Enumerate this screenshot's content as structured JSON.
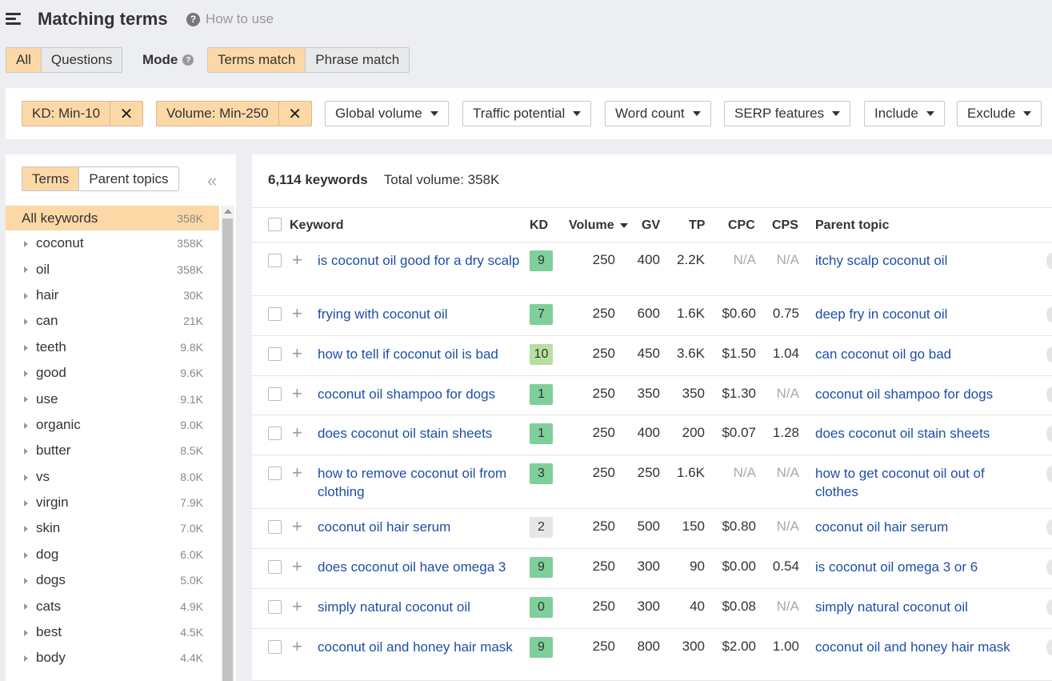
{
  "header": {
    "title": "Matching terms",
    "howto": "How to use"
  },
  "tabs": {
    "all": "All",
    "questions": "Questions"
  },
  "mode": {
    "label": "Mode",
    "terms_match": "Terms match",
    "phrase_match": "Phrase match"
  },
  "filters": {
    "kd": "KD: Min-10",
    "volume": "Volume: Min-250",
    "global_volume": "Global volume",
    "traffic_potential": "Traffic potential",
    "word_count": "Word count",
    "serp_features": "SERP features",
    "include": "Include",
    "exclude": "Exclude"
  },
  "sidebar": {
    "tab_terms": "Terms",
    "tab_parent": "Parent topics",
    "all": {
      "label": "All keywords",
      "count": "358K"
    },
    "items": [
      {
        "label": "coconut",
        "count": "358K"
      },
      {
        "label": "oil",
        "count": "358K"
      },
      {
        "label": "hair",
        "count": "30K"
      },
      {
        "label": "can",
        "count": "21K"
      },
      {
        "label": "teeth",
        "count": "9.8K"
      },
      {
        "label": "good",
        "count": "9.6K"
      },
      {
        "label": "use",
        "count": "9.1K"
      },
      {
        "label": "organic",
        "count": "9.0K"
      },
      {
        "label": "butter",
        "count": "8.5K"
      },
      {
        "label": "vs",
        "count": "8.0K"
      },
      {
        "label": "virgin",
        "count": "7.9K"
      },
      {
        "label": "skin",
        "count": "7.0K"
      },
      {
        "label": "dog",
        "count": "6.0K"
      },
      {
        "label": "dogs",
        "count": "5.0K"
      },
      {
        "label": "cats",
        "count": "4.9K"
      },
      {
        "label": "best",
        "count": "4.5K"
      },
      {
        "label": "body",
        "count": "4.4K"
      }
    ]
  },
  "summary": {
    "count": "6,114 keywords",
    "total": "Total volume: 358K"
  },
  "table": {
    "headers": {
      "keyword": "Keyword",
      "kd": "KD",
      "volume": "Volume",
      "gv": "GV",
      "tp": "TP",
      "cpc": "CPC",
      "cps": "CPS",
      "parent": "Parent topic"
    },
    "rows": [
      {
        "keyword": "is coconut oil good for a dry scalp",
        "kd": "9",
        "kd_color": "#7fcf9b",
        "volume": "250",
        "gv": "400",
        "tp": "2.2K",
        "cpc": "N/A",
        "cps": "N/A",
        "parent": "itchy scalp coconut oil"
      },
      {
        "keyword": "frying with coconut oil",
        "kd": "7",
        "kd_color": "#7fcf9b",
        "volume": "250",
        "gv": "600",
        "tp": "1.6K",
        "cpc": "$0.60",
        "cps": "0.75",
        "parent": "deep fry in coconut oil"
      },
      {
        "keyword": "how to tell if coconut oil is bad",
        "kd": "10",
        "kd_color": "#b6e0a0",
        "volume": "250",
        "gv": "450",
        "tp": "3.6K",
        "cpc": "$1.50",
        "cps": "1.04",
        "parent": "can coconut oil go bad"
      },
      {
        "keyword": "coconut oil shampoo for dogs",
        "kd": "1",
        "kd_color": "#7fcf9b",
        "volume": "250",
        "gv": "350",
        "tp": "350",
        "cpc": "$1.30",
        "cps": "N/A",
        "parent": "coconut oil shampoo for dogs"
      },
      {
        "keyword": "does coconut oil stain sheets",
        "kd": "1",
        "kd_color": "#7fcf9b",
        "volume": "250",
        "gv": "400",
        "tp": "200",
        "cpc": "$0.07",
        "cps": "1.28",
        "parent": "does coconut oil stain sheets"
      },
      {
        "keyword": "how to remove coconut oil from clothing",
        "kd": "3",
        "kd_color": "#7fcf9b",
        "volume": "250",
        "gv": "250",
        "tp": "1.6K",
        "cpc": "N/A",
        "cps": "N/A",
        "parent": "how to get coconut oil out of clothes"
      },
      {
        "keyword": "coconut oil hair serum",
        "kd": "2",
        "kd_color": "#e6e6e6",
        "volume": "250",
        "gv": "500",
        "tp": "150",
        "cpc": "$0.80",
        "cps": "N/A",
        "parent": "coconut oil hair serum"
      },
      {
        "keyword": "does coconut oil have omega 3",
        "kd": "9",
        "kd_color": "#7fcf9b",
        "volume": "250",
        "gv": "300",
        "tp": "90",
        "cpc": "$0.00",
        "cps": "0.54",
        "parent": "is coconut oil omega 3 or 6"
      },
      {
        "keyword": "simply natural coconut oil",
        "kd": "0",
        "kd_color": "#7fcf9b",
        "volume": "250",
        "gv": "300",
        "tp": "40",
        "cpc": "$0.08",
        "cps": "N/A",
        "parent": "simply natural coconut oil"
      },
      {
        "keyword": "coconut oil and honey hair mask",
        "kd": "9",
        "kd_color": "#7fcf9b",
        "volume": "250",
        "gv": "800",
        "tp": "300",
        "cpc": "$2.00",
        "cps": "1.00",
        "parent": "coconut oil and honey hair mask"
      }
    ]
  }
}
